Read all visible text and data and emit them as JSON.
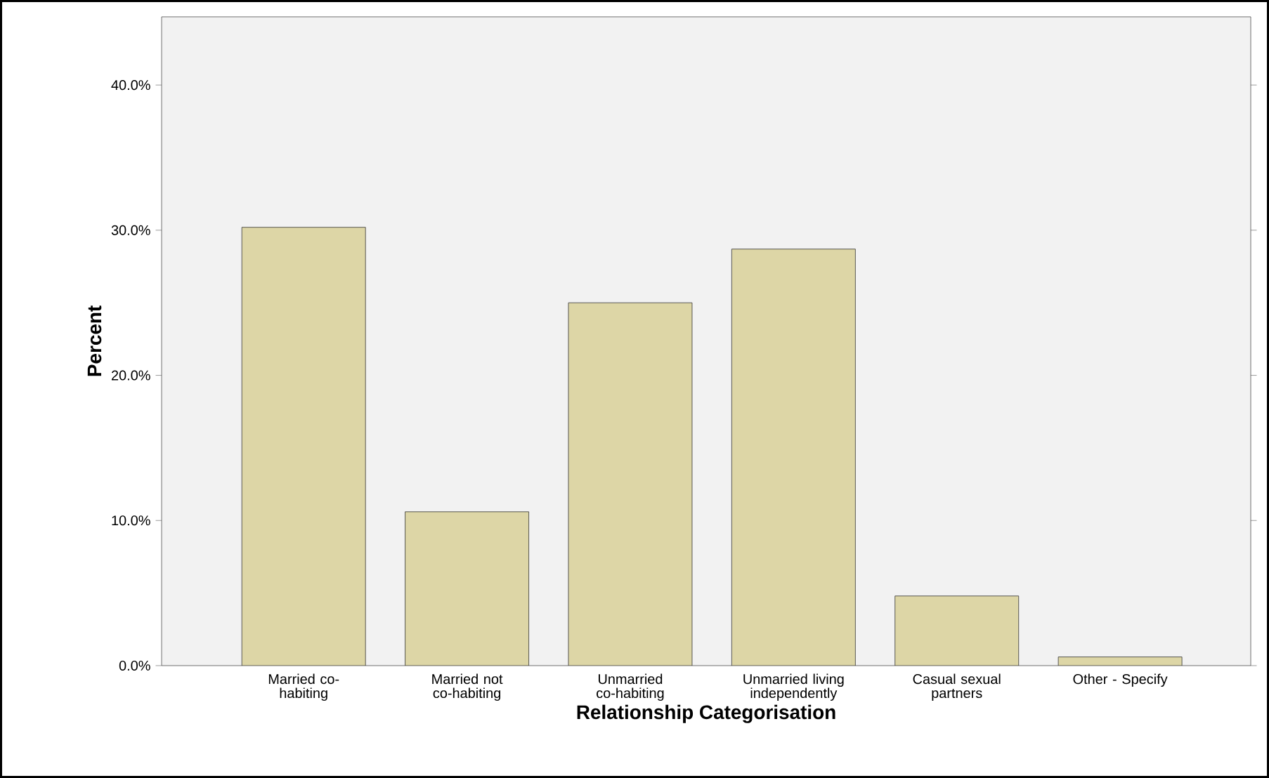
{
  "chart_data": {
    "type": "bar",
    "xlabel": "Relationship Categorisation",
    "ylabel": "Percent",
    "categories": [
      "Married co-habiting",
      "Married not co-habiting",
      "Unmarried co-habiting",
      "Unmarried living independently",
      "Casual sexual partners",
      "Other - Specify"
    ],
    "values": [
      30.2,
      10.6,
      25.0,
      28.7,
      4.8,
      0.6
    ],
    "color": "#ddd6a6",
    "ylim": [
      0,
      44.7
    ],
    "yticks": [
      {
        "value": 0,
        "label": "0.0%"
      },
      {
        "value": 10,
        "label": "10.0%"
      },
      {
        "value": 20,
        "label": "20.0%"
      },
      {
        "value": 30,
        "label": "30.0%"
      },
      {
        "value": 40,
        "label": "40.0%"
      }
    ]
  }
}
